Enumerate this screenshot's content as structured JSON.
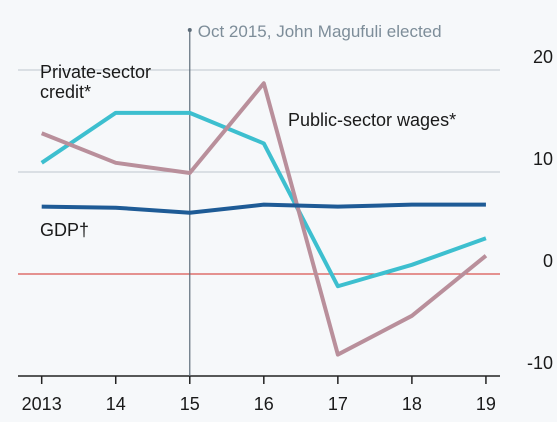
{
  "chart_data": {
    "type": "line",
    "x": [
      2013,
      2014,
      2015,
      2016,
      2017,
      2018,
      2019
    ],
    "xlim": [
      2012.68,
      2019.19
    ],
    "xticks": [
      {
        "value": 2013,
        "label": "2013"
      },
      {
        "value": 2014,
        "label": "14"
      },
      {
        "value": 2015,
        "label": "15"
      },
      {
        "value": 2016,
        "label": "16"
      },
      {
        "value": 2017,
        "label": "17"
      },
      {
        "value": 2018,
        "label": "18"
      },
      {
        "value": 2019,
        "label": "19"
      }
    ],
    "ylim": [
      -10,
      25
    ],
    "yticks": [
      -10,
      0,
      10,
      20
    ],
    "grid": true,
    "series": [
      {
        "name": [
          "Private-sector",
          "credit*"
        ],
        "color": "#3dbfcf",
        "values": [
          10.9,
          15.8,
          15.8,
          12.8,
          -1.2,
          0.9,
          3.5
        ]
      },
      {
        "name": [
          "Public-sector wages*"
        ],
        "color": "#b98f9b",
        "values": [
          13.8,
          10.9,
          9.9,
          18.7,
          -7.9,
          -4.1,
          1.8
        ]
      },
      {
        "name": [
          "GDP†"
        ],
        "color": "#1e5b96",
        "values": [
          6.6,
          6.5,
          6.0,
          6.8,
          6.6,
          6.8,
          6.8
        ]
      }
    ],
    "annotations": [
      {
        "text": "Oct 2015, John Magufuli elected",
        "x": 2015
      }
    ]
  }
}
